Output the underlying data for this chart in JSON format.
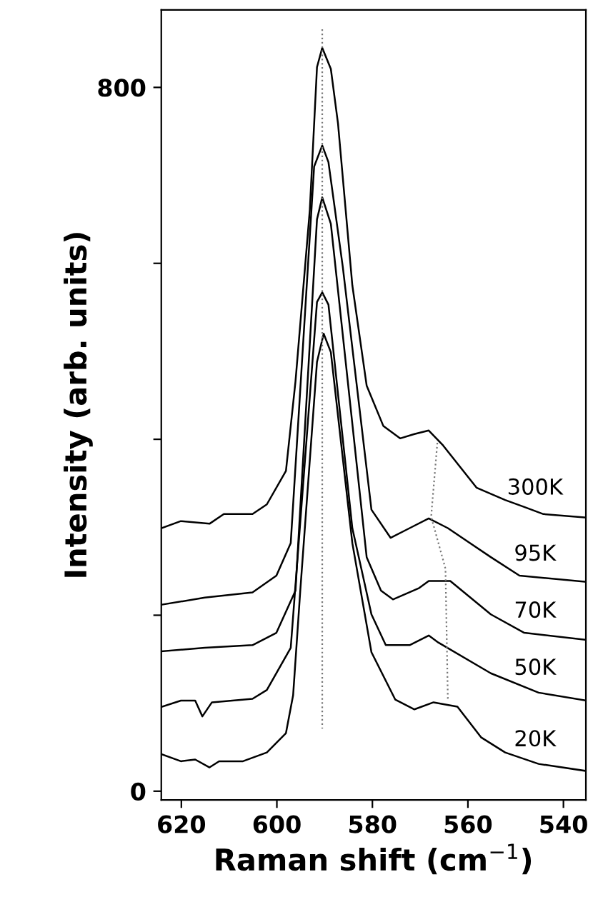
{
  "chart_data": {
    "type": "line",
    "xlabel": "Raman shift (cm$^{−1}$)",
    "ylabel": "Intensity (arb. units)",
    "xlim": [
      624.2,
      535.3
    ],
    "xticks": [
      620,
      600,
      580,
      560,
      540
    ],
    "ylim": [
      -10,
      888
    ],
    "yticks": [
      0,
      {
        "value": 200,
        "label": null
      },
      {
        "value": 400,
        "label": null
      },
      {
        "value": 600,
        "label": null
      },
      800
    ],
    "grid": false,
    "legend": false,
    "marker": "none",
    "series": [
      {
        "name": "300K",
        "color": "#000000",
        "line_style": "solid",
        "x": [
          624.1,
          620.1,
          614.1,
          611.1,
          605.1,
          602.1,
          598.1,
          596.1,
          593.1,
          591.6,
          590.5,
          588.7,
          587.2,
          584.2,
          581.2,
          577.7,
          574.2,
          571.2,
          568.2,
          565.2,
          558.2,
          552.2,
          548.2,
          544.2,
          535.3
        ],
        "values": [
          299,
          307,
          304,
          315,
          315,
          326,
          364,
          466,
          661,
          823,
          845,
          821,
          759,
          575,
          461,
          415,
          401,
          406,
          410,
          393,
          345,
          331,
          323,
          315,
          311
        ]
      },
      {
        "name": "95K",
        "color": "#000000",
        "line_style": "solid",
        "x": [
          624.1,
          615.1,
          605.1,
          600.1,
          597.1,
          592.2,
          590.5,
          589.2,
          586.2,
          580.2,
          576.2,
          572.2,
          568.2,
          564.2,
          555.2,
          549.2,
          535.3
        ],
        "values": [
          212,
          220,
          226,
          245,
          282,
          710,
          734,
          715,
          596,
          320,
          288,
          299,
          310,
          299,
          266,
          245,
          238
        ]
      },
      {
        "name": "70K",
        "color": "#000000",
        "line_style": "solid",
        "x": [
          624.1,
          615.1,
          605.1,
          600.1,
          596.1,
          591.6,
          590.5,
          588.7,
          581.2,
          578.2,
          575.7,
          570.2,
          568.2,
          563.7,
          555.2,
          548.2,
          535.3
        ],
        "values": [
          159,
          163,
          166,
          180,
          228,
          650,
          675,
          645,
          266,
          228,
          218,
          231,
          239,
          239,
          201,
          180,
          172
        ]
      },
      {
        "name": "50K",
        "color": "#000000",
        "line_style": "solid",
        "x": [
          624.1,
          620.1,
          617.1,
          615.6,
          613.6,
          605.1,
          602.1,
          597.1,
          591.6,
          590.5,
          589.2,
          584.2,
          580.2,
          577.2,
          572.2,
          568.2,
          566.2,
          555.2,
          545.2,
          535.3
        ],
        "values": [
          96,
          103,
          103,
          85,
          101,
          105,
          115,
          163,
          556,
          567,
          553,
          299,
          201,
          166,
          166,
          177,
          169,
          134,
          112,
          103
        ]
      },
      {
        "name": "20K",
        "color": "#000000",
        "line_style": "solid",
        "x": [
          624.1,
          620.1,
          617.1,
          614.1,
          612.1,
          607.1,
          602.1,
          598.1,
          596.6,
          595.1,
          591.6,
          590.2,
          588.7,
          584.2,
          580.2,
          575.2,
          571.2,
          567.2,
          562.2,
          557.2,
          552.2,
          545.2,
          535.3
        ],
        "values": [
          42,
          34,
          36,
          27,
          34,
          34,
          44,
          66,
          109,
          228,
          488,
          520,
          499,
          282,
          158,
          104,
          93,
          101,
          96,
          61,
          44,
          31,
          23
        ]
      },
      {
        "color": "#777777",
        "line_style": "dotted",
        "x": [
          590.5,
          590.5
        ],
        "values": [
          866,
          71
        ]
      },
      {
        "color": "#777777",
        "line_style": "dotted",
        "x": [
          566.4,
          567.7,
          564.7,
          564.2
        ],
        "values": [
          396,
          312,
          253,
          104
        ]
      }
    ]
  }
}
